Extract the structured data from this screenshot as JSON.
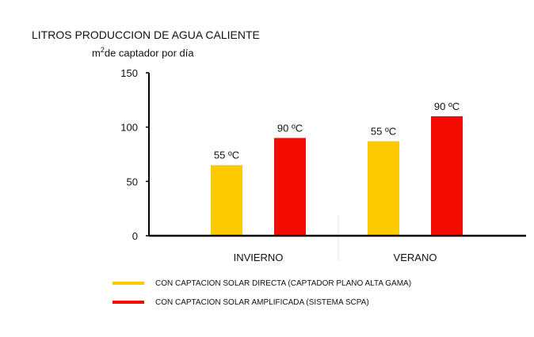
{
  "title": "LITROS PRODUCCION DE AGUA CALIENTE",
  "subtitle_prefix": "m",
  "subtitle_sup": "2",
  "subtitle_suffix": "de captador por día",
  "colors": {
    "series_a": "#fcc900",
    "series_b": "#f50c00",
    "axis": "#000000"
  },
  "chart_data": {
    "type": "bar",
    "title": "LITROS PRODUCCION DE AGUA CALIENTE",
    "ylabel": "m2 de captador por día",
    "xlabel": "",
    "categories": [
      "INVIERNO",
      "VERANO"
    ],
    "ylim": [
      0,
      150
    ],
    "yticks": [
      0,
      50,
      100,
      150
    ],
    "grid": false,
    "legend_position": "bottom",
    "series": [
      {
        "name": "CON CAPTACION SOLAR DIRECTA (CAPTADOR PLANO ALTA GAMA)",
        "values": [
          65,
          87
        ],
        "labels": [
          "55 ºC",
          "55 ºC"
        ],
        "color": "#fcc900"
      },
      {
        "name": "CON CAPTACION SOLAR AMPLIFICADA (SISTEMA SCPA)",
        "values": [
          90,
          110
        ],
        "labels": [
          "90 ºC",
          "90 ºC"
        ],
        "color": "#f50c00"
      }
    ]
  }
}
